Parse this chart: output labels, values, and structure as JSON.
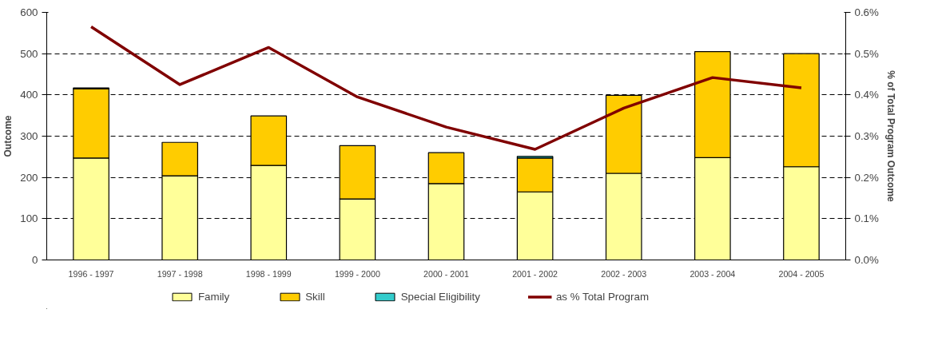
{
  "chart_data": {
    "type": "bar",
    "stacked": true,
    "xlabel": null,
    "ylabel": "Outcome",
    "y2label": "% of Total Program Outcome",
    "categories": [
      "1996 - 1997",
      "1997 - 1998",
      "1998 - 1999",
      "1999 - 2000",
      "2000 - 2001",
      "2001 - 2002",
      "2002 - 2003",
      "2003 - 2004",
      "2004 - 2005"
    ],
    "series": [
      {
        "name": "Family",
        "color": "#ffff99",
        "values": [
          247,
          204,
          229,
          148,
          185,
          165,
          210,
          248,
          226
        ]
      },
      {
        "name": "Skill",
        "color": "#ffcc00",
        "values": [
          168,
          81,
          120,
          129,
          75,
          82,
          189,
          257,
          274
        ]
      },
      {
        "name": "Special Eligibility",
        "color": "#33cccc",
        "values": [
          2,
          null,
          null,
          null,
          null,
          4,
          null,
          null,
          null
        ]
      },
      {
        "name": "as % Total Program",
        "type": "line",
        "axis": "y2",
        "color": "#800000",
        "values": [
          0.565,
          0.425,
          0.515,
          0.395,
          0.322,
          0.268,
          0.368,
          0.442,
          0.417
        ]
      }
    ],
    "ylim": [
      0,
      600
    ],
    "yticks": [
      0,
      100,
      200,
      300,
      400,
      500,
      600
    ],
    "y2lim": [
      0,
      0.6
    ],
    "y2ticks": [
      {
        "value": 0,
        "label": "0.0%"
      },
      {
        "value": 0.1,
        "label": "0.1%"
      },
      {
        "value": 0.2,
        "label": "0.2%"
      },
      {
        "value": 0.3,
        "label": "0.3%"
      },
      {
        "value": 0.4,
        "label": "0.4%"
      },
      {
        "value": 0.5,
        "label": "0.5%"
      },
      {
        "value": 0.6,
        "label": "0.6%"
      }
    ],
    "grid": "y",
    "legend": "bottom",
    "marker": "none",
    "line_style": "solid"
  }
}
